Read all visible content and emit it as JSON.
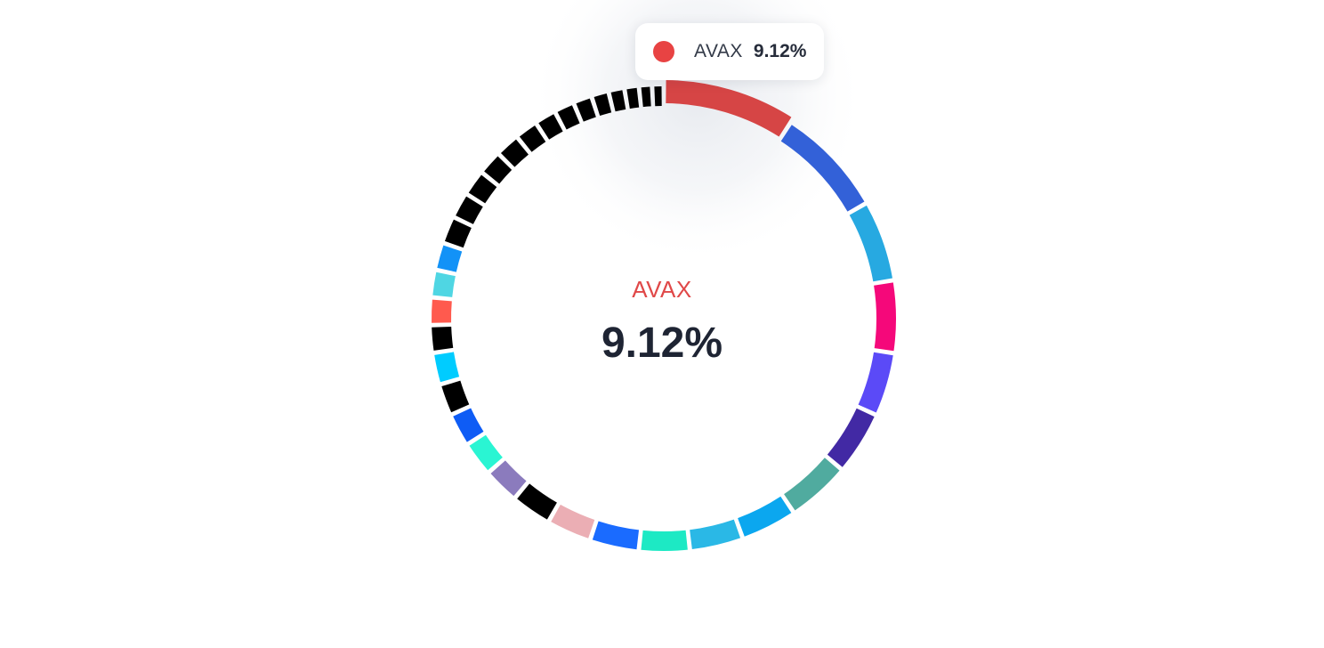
{
  "chart_data": {
    "type": "pie",
    "donut": true,
    "legend": "none",
    "slices": [
      {
        "name": "AVAX",
        "value": 9.12,
        "color": "#d64545"
      },
      {
        "name": "",
        "value": 7.6,
        "color": "#3361d8"
      },
      {
        "name": "",
        "value": 5.6,
        "color": "#27a9e1"
      },
      {
        "name": "",
        "value": 5.0,
        "color": "#f5087a"
      },
      {
        "name": "",
        "value": 4.4,
        "color": "#5b4af7"
      },
      {
        "name": "",
        "value": 4.4,
        "color": "#4229a4"
      },
      {
        "name": "",
        "value": 4.4,
        "color": "#50ab9f"
      },
      {
        "name": "",
        "value": 3.9,
        "color": "#0ba7ef"
      },
      {
        "name": "",
        "value": 3.7,
        "color": "#2ab8e6"
      },
      {
        "name": "",
        "value": 3.5,
        "color": "#1de9c4"
      },
      {
        "name": "",
        "value": 3.4,
        "color": "#1a6bff"
      },
      {
        "name": "",
        "value": 3.1,
        "color": "#ebaeb4"
      },
      {
        "name": "",
        "value": 2.8,
        "color": "#000000"
      },
      {
        "name": "",
        "value": 2.5,
        "color": "#8b7bbd"
      },
      {
        "name": "",
        "value": 2.4,
        "color": "#2af5d3"
      },
      {
        "name": "",
        "value": 2.3,
        "color": "#0e5cf5"
      },
      {
        "name": "",
        "value": 2.2,
        "color": "#000000"
      },
      {
        "name": "",
        "value": 2.2,
        "color": "#00ccff"
      },
      {
        "name": "",
        "value": 1.9,
        "color": "#000000"
      },
      {
        "name": "",
        "value": 1.9,
        "color": "#ff5a4e"
      },
      {
        "name": "",
        "value": 1.9,
        "color": "#4fd6e3"
      },
      {
        "name": "",
        "value": 1.9,
        "color": "#1292f7"
      },
      {
        "name": "",
        "value": 1.9,
        "color": "#000000"
      },
      {
        "name": "",
        "value": 1.8,
        "color": "#000000"
      },
      {
        "name": "",
        "value": 1.8,
        "color": "#000000"
      },
      {
        "name": "",
        "value": 1.7,
        "color": "#000000"
      },
      {
        "name": "",
        "value": 1.7,
        "color": "#000000"
      },
      {
        "name": "",
        "value": 1.6,
        "color": "#000000"
      },
      {
        "name": "",
        "value": 1.5,
        "color": "#000000"
      },
      {
        "name": "",
        "value": 1.4,
        "color": "#000000"
      },
      {
        "name": "",
        "value": 1.3,
        "color": "#000000"
      },
      {
        "name": "",
        "value": 1.2,
        "color": "#000000"
      },
      {
        "name": "",
        "value": 1.1,
        "color": "#000000"
      },
      {
        "name": "",
        "value": 1.0,
        "color": "#000000"
      },
      {
        "name": "",
        "value": 0.9,
        "color": "#000000"
      },
      {
        "name": "",
        "value": 0.8,
        "color": "#000000"
      }
    ],
    "highlight": {
      "name": "AVAX",
      "value_label": "9.12%",
      "color": "#d64545"
    }
  },
  "center": {
    "name": "AVAX",
    "value": "9.12%",
    "name_color": "#e04848"
  },
  "tooltip": {
    "name": "AVAX",
    "value": "9.12%",
    "dot_color": "#e84343"
  }
}
